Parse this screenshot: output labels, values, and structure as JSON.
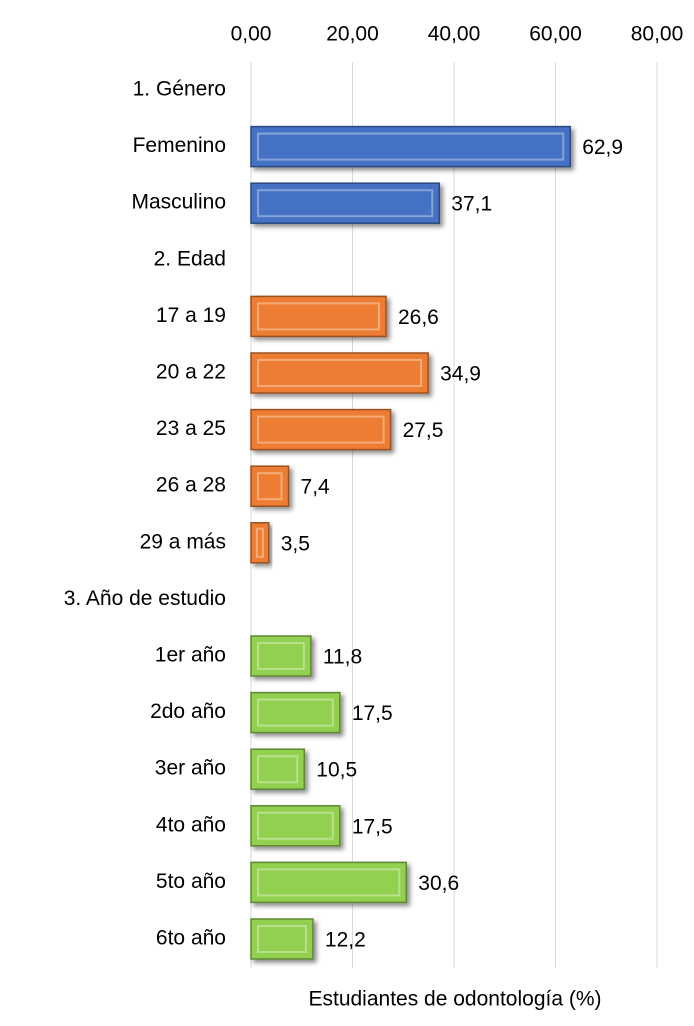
{
  "chart_data": {
    "type": "hbar",
    "xlabel": "Estudiantes de odontología (%)",
    "categories": [
      "1. Género",
      "Femenino",
      "Masculino",
      "2. Edad",
      "17 a 19",
      "20 a 22",
      "23 a 25",
      "26 a 28",
      "29 a más",
      "3. Año de estudio",
      "1er año",
      "2do año",
      "3er año",
      "4to año",
      "5to año",
      "6to año"
    ],
    "series": [
      {
        "color": "#4472c4",
        "values": [
          null,
          62.9,
          37.1,
          null,
          null,
          null,
          null,
          null,
          null,
          null,
          null,
          null,
          null,
          null,
          null,
          null
        ],
        "value_labels": [
          null,
          "62,9",
          "37,1",
          null,
          null,
          null,
          null,
          null,
          null,
          null,
          null,
          null,
          null,
          null,
          null,
          null
        ]
      },
      {
        "color": "#ed7d31",
        "values": [
          null,
          null,
          null,
          null,
          26.6,
          34.9,
          27.5,
          7.4,
          3.5,
          null,
          null,
          null,
          null,
          null,
          null,
          null
        ],
        "value_labels": [
          null,
          null,
          null,
          null,
          "26,6",
          "34,9",
          "27,5",
          "7,4",
          "3,5",
          null,
          null,
          null,
          null,
          null,
          null,
          null
        ]
      },
      {
        "color": "#92d050",
        "values": [
          null,
          null,
          null,
          null,
          null,
          null,
          null,
          null,
          null,
          null,
          11.8,
          17.5,
          10.5,
          17.5,
          30.6,
          12.2
        ],
        "value_labels": [
          null,
          null,
          null,
          null,
          null,
          null,
          null,
          null,
          null,
          null,
          "11,8",
          "17,5",
          "10,5",
          "17,5",
          "30,6",
          "12,2"
        ]
      }
    ],
    "xlim": [
      0,
      80
    ],
    "xticks": [
      {
        "value": 0,
        "label": "0,00"
      },
      {
        "value": 20,
        "label": "20,00"
      },
      {
        "value": 40,
        "label": "40,00"
      },
      {
        "value": 60,
        "label": "60,00"
      },
      {
        "value": 80,
        "label": "80,00"
      }
    ],
    "grid": true
  }
}
